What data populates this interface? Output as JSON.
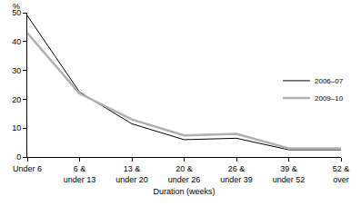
{
  "chart_data": {
    "type": "line",
    "x_label": "Duration (weeks)",
    "y_label": "%",
    "categories": [
      "Under 6",
      "6 & under 13",
      "13 & under 20",
      "20 & under 26",
      "26 & under 39",
      "39 & under 52",
      "52 & over"
    ],
    "series": [
      {
        "name": "2006–07",
        "color": "#000000",
        "values": [
          49,
          22.5,
          11.5,
          6,
          6.5,
          2.5,
          2.5
        ]
      },
      {
        "name": "2009–10",
        "color": "#b0b0b0",
        "values": [
          43,
          22,
          13,
          7.5,
          8,
          3,
          3
        ]
      }
    ],
    "ylim": [
      0,
      50
    ],
    "yticks": [
      0,
      10,
      20,
      30,
      40,
      50
    ],
    "grid": false,
    "legend": "right"
  }
}
